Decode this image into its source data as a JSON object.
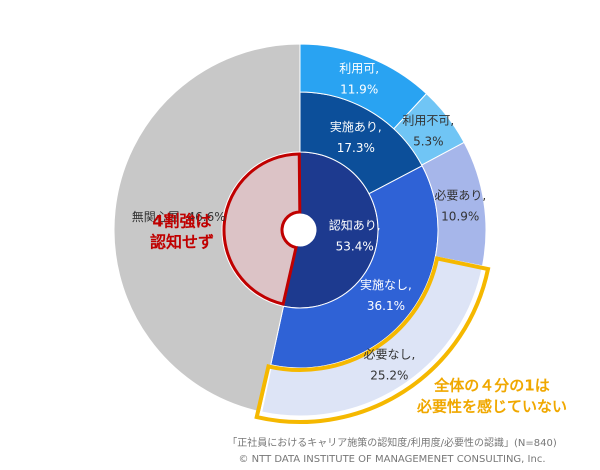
{
  "chart_data": {
    "type": "sunburst",
    "rings": [
      {
        "segments": [
          {
            "name": "認知あり,",
            "value": 53.4,
            "value_label": "53.4%",
            "color": "#1d3a8f"
          },
          {
            "name": null,
            "value": 46.6,
            "color": "#dcc3c6",
            "stroke": "#c00000"
          }
        ]
      },
      {
        "segments": [
          {
            "name": "実施あり,",
            "value": 17.3,
            "value_label": "17.3%",
            "color": "#0c4f9a"
          },
          {
            "name": "実施なし,",
            "value": 36.1,
            "value_label": "36.1%",
            "color": "#2f62d6"
          },
          {
            "name": "無関心層,",
            "value": 46.6,
            "value_label": "46.6%",
            "color": "#c8c8c8",
            "span": 2
          }
        ]
      },
      {
        "segments": [
          {
            "name": "利用可,",
            "value": 11.9,
            "value_label": "11.9%",
            "color": "#29a3f2"
          },
          {
            "name": "利用不可,",
            "value": 5.3,
            "value_label": "5.3%",
            "color": "#70c5f5"
          },
          {
            "name": "必要あり,",
            "value": 10.9,
            "value_label": "10.9%",
            "color": "#a6b6ea"
          },
          {
            "name": "必要なし,",
            "value": 25.2,
            "value_label": "25.2%",
            "color": "#dde4f6",
            "stroke": "#f5b800"
          }
        ]
      }
    ],
    "annotations": [
      {
        "lines": [
          "4割強は",
          "認知せず"
        ],
        "color": "#c00000"
      },
      {
        "lines": [
          "全体の４分の1は",
          "必要性を感じていない"
        ],
        "color": "#f0a800"
      }
    ],
    "footnote": [
      "「正社員におけるキャリア施策の認知度/利用度/必要性の認識」(N=840)",
      "© NTT DATA INSTITUTE OF MANAGEMENET CONSULTING, Inc."
    ]
  }
}
